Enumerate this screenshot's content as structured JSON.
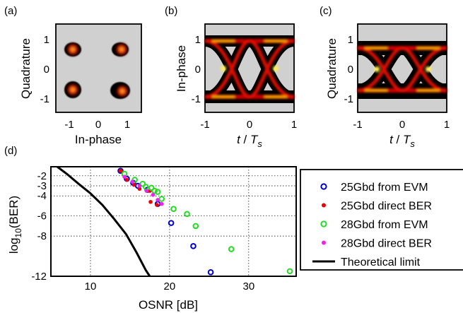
{
  "panels": [
    {
      "label": "(a)",
      "type": "constellation",
      "xlabel": "In-phase",
      "ylabel": "Quadrature",
      "xticks": [
        "-1",
        "0",
        "1"
      ],
      "yticks": [
        "1",
        "0",
        "-1"
      ]
    },
    {
      "label": "(b)",
      "type": "eye",
      "xlabel_main": "t",
      "xlabel_sep": " / ",
      "xlabel_T": "T",
      "xlabel_sub": "s",
      "ylabel": "In-phase",
      "xticks": [
        "-1",
        "0",
        "1"
      ],
      "yticks": [
        "1",
        "0",
        "-1"
      ]
    },
    {
      "label": "(c)",
      "type": "eye",
      "xlabel_main": "t",
      "xlabel_sep": " / ",
      "xlabel_T": "T",
      "xlabel_sub": "s",
      "ylabel": "Quadrature",
      "xticks": [
        "-1",
        "0",
        "1"
      ],
      "yticks": [
        "1",
        "0",
        "-1"
      ]
    }
  ],
  "chart_data": {
    "label": "(d)",
    "type": "scatter",
    "xlabel": "OSNR [dB]",
    "ylabel_main": "log",
    "ylabel_sub": "10",
    "ylabel_arg": "(BER)",
    "xlim": [
      5,
      36
    ],
    "ylim": [
      -12,
      -1.1
    ],
    "xticks": [
      10,
      20,
      30
    ],
    "yticks": [
      -2,
      -3,
      -4,
      -6,
      -8,
      -12
    ],
    "ytick_labels": [
      "-2",
      "-3",
      "-4",
      "-6",
      "-8",
      "-12"
    ],
    "grid": true,
    "legend_position": "right",
    "series": [
      {
        "name": "25Gbd from EVM",
        "marker": "circle-open",
        "color": "#0000cc",
        "points": [
          [
            13.8,
            -1.5
          ],
          [
            14.6,
            -2.3
          ],
          [
            15.4,
            -2.7
          ],
          [
            16.0,
            -3.0
          ],
          [
            17.2,
            -3.4
          ],
          [
            18.5,
            -4.8
          ],
          [
            20.2,
            -6.7
          ],
          [
            23.0,
            -9.0
          ],
          [
            25.2,
            -11.6
          ]
        ]
      },
      {
        "name": "25Gbd direct BER",
        "marker": "dot",
        "color": "#ee0000",
        "points": [
          [
            13.8,
            -1.5
          ],
          [
            14.6,
            -2.4
          ],
          [
            15.5,
            -2.9
          ],
          [
            16.2,
            -3.3
          ],
          [
            17.5,
            -3.5
          ],
          [
            17.6,
            -4.6
          ],
          [
            18.4,
            -4.9
          ]
        ]
      },
      {
        "name": "28Gbd from EVM",
        "marker": "circle-open",
        "color": "#22dd22",
        "points": [
          [
            14.3,
            -1.8
          ],
          [
            15.6,
            -2.4
          ],
          [
            16.6,
            -2.8
          ],
          [
            17.0,
            -3.1
          ],
          [
            17.7,
            -3.2
          ],
          [
            18.1,
            -3.5
          ],
          [
            18.5,
            -3.6
          ],
          [
            19.0,
            -4.3
          ],
          [
            20.5,
            -5.3
          ],
          [
            22.2,
            -5.8
          ],
          [
            23.3,
            -7.0
          ],
          [
            27.8,
            -9.3
          ],
          [
            35.2,
            -11.5
          ]
        ]
      },
      {
        "name": "28Gbd direct BER",
        "marker": "dot",
        "color": "#ee22ee",
        "points": [
          [
            14.3,
            -2.1
          ],
          [
            15.3,
            -2.6
          ],
          [
            16.2,
            -3.0
          ],
          [
            17.1,
            -3.5
          ],
          [
            17.9,
            -3.9
          ],
          [
            18.5,
            -4.4
          ],
          [
            19.0,
            -4.8
          ]
        ]
      },
      {
        "name": "Theoretical limit",
        "marker": "line",
        "color": "#000000",
        "points": [
          [
            5.8,
            -1.1
          ],
          [
            7.0,
            -1.8
          ],
          [
            8.5,
            -2.8
          ],
          [
            10.0,
            -3.75
          ],
          [
            11.5,
            -4.9
          ],
          [
            13.0,
            -6.3
          ],
          [
            14.5,
            -7.8
          ],
          [
            15.8,
            -9.6
          ],
          [
            17.0,
            -11.4
          ],
          [
            17.5,
            -12.0
          ]
        ]
      }
    ]
  }
}
